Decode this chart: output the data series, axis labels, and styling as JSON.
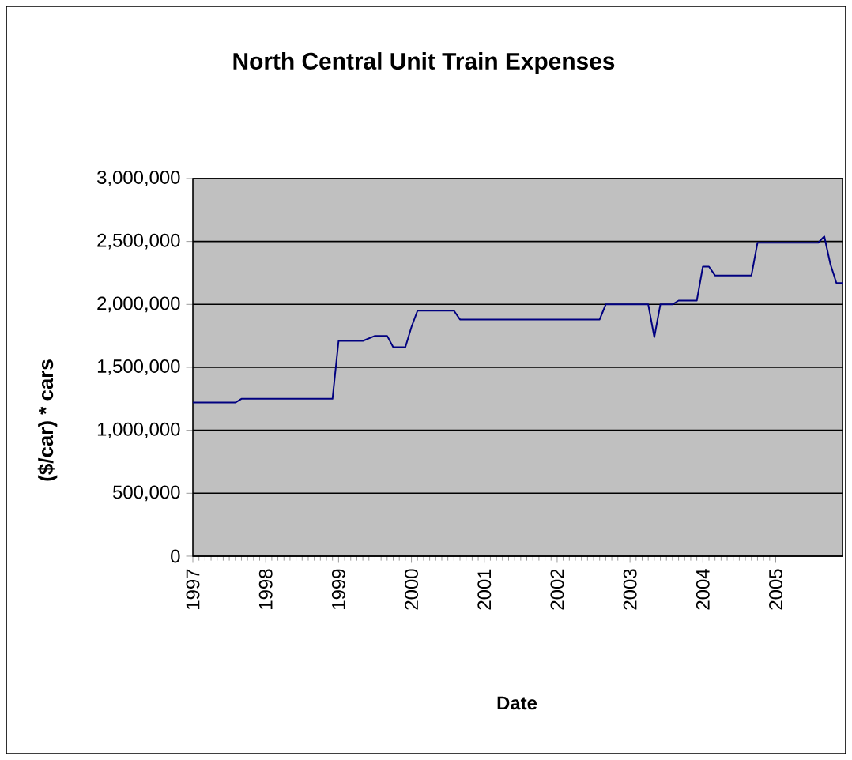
{
  "chart_data": {
    "type": "line",
    "title": "North Central Unit Train Expenses",
    "xlabel": "Date",
    "ylabel": "($/car) * cars",
    "x": [
      "1997-01",
      "1997-08",
      "1997-09",
      "1998-12",
      "1999-01",
      "1999-05",
      "1999-07",
      "1999-09",
      "1999-10",
      "1999-12",
      "2000-01",
      "2000-02",
      "2000-08",
      "2000-09",
      "2002-08",
      "2002-09",
      "2003-04",
      "2003-05",
      "2003-06",
      "2003-08",
      "2003-09",
      "2003-12",
      "2004-01",
      "2004-02",
      "2004-03",
      "2004-09",
      "2004-10",
      "2005-08",
      "2005-09",
      "2005-10",
      "2005-11",
      "2005-12"
    ],
    "series": [
      {
        "color": "#000080",
        "values": [
          1220000,
          1220000,
          1250000,
          1250000,
          1710000,
          1710000,
          1750000,
          1750000,
          1660000,
          1660000,
          1820000,
          1950000,
          1950000,
          1880000,
          1880000,
          2000000,
          2000000,
          1740000,
          2000000,
          2000000,
          2030000,
          2030000,
          2300000,
          2300000,
          2230000,
          2230000,
          2490000,
          2490000,
          2540000,
          2320000,
          2170000,
          2170000
        ]
      }
    ],
    "xlim": [
      "1997-01",
      "2005-12"
    ],
    "xticks": [
      {
        "value": "1997-01",
        "label": "1997"
      },
      {
        "value": "1998-01",
        "label": "1998"
      },
      {
        "value": "1999-01",
        "label": "1999"
      },
      {
        "value": "2000-01",
        "label": "2000"
      },
      {
        "value": "2001-01",
        "label": "2001"
      },
      {
        "value": "2002-01",
        "label": "2002"
      },
      {
        "value": "2003-01",
        "label": "2003"
      },
      {
        "value": "2004-01",
        "label": "2004"
      },
      {
        "value": "2005-01",
        "label": "2005"
      }
    ],
    "ylim": [
      0,
      3000000
    ],
    "yticks": [
      0,
      {
        "value": 500000,
        "label": "500,000"
      },
      {
        "value": 1000000,
        "label": "1,000,000"
      },
      {
        "value": 1500000,
        "label": "1,500,000"
      },
      {
        "value": 2000000,
        "label": "2,000,000"
      },
      {
        "value": 2500000,
        "label": "2,500,000"
      },
      {
        "value": 3000000,
        "label": "3,000,000"
      }
    ],
    "grid": "y",
    "marker": "none",
    "line_style": "solid"
  }
}
